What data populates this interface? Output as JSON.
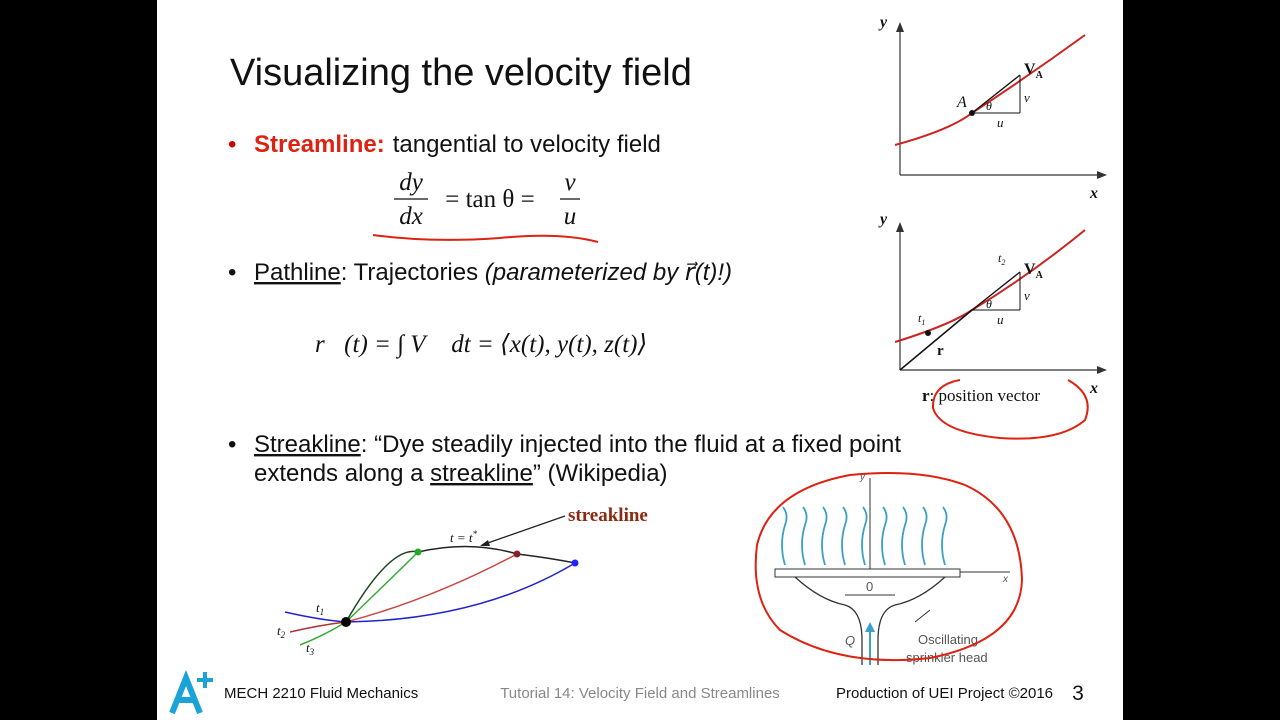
{
  "slide": {
    "title": "Visualizing the velocity field",
    "bullets": [
      {
        "term": "Streamline:",
        "text": "tangential to velocity field",
        "equation": {
          "num1": "dy",
          "den1": "dx",
          "middle": "= tan θ =",
          "num2": "v",
          "den2": "u"
        }
      },
      {
        "term": "Pathline",
        "text": ": Trajectories ",
        "note": "(parameterized by r⃗(t)!)",
        "equation": "r⃗(t) = ∫ V⃗ dt = ⟨x(t), y(t), z(t)⟩"
      },
      {
        "term": "Streakline",
        "line1": ": “Dye steadily injected into the fluid at a fixed point",
        "line2_start": "extends along a ",
        "line2_link": "streakline",
        "line2_end": "” (Wikipedia)"
      }
    ],
    "figure_streamline": {
      "y": "y",
      "x": "x",
      "point": "A",
      "angle": "θ",
      "vector": "V",
      "vector_sub": "A",
      "v": "v",
      "u": "u"
    },
    "figure_pathline": {
      "y": "y",
      "x": "x",
      "t2": "t",
      "t2_sub": "2",
      "t1": "t",
      "t1_sub": "1",
      "vector": "V",
      "vector_sub": "A",
      "angle": "θ",
      "v": "v",
      "u": "u",
      "r": "r",
      "caption_r": "r",
      "caption": ": position vector"
    },
    "figure_streakline": {
      "label": "streakline",
      "time": "t = t",
      "time_sup": "*",
      "t1": "t",
      "t1_sub": "1",
      "t2": "t",
      "t2_sub": "2",
      "t3": "t",
      "t3_sub": "3"
    },
    "figure_sprinkler": {
      "y": "y",
      "x": "x",
      "origin": "0",
      "flow": "Q",
      "caption1": "Oscillating",
      "caption2": "sprinkler head"
    },
    "footer": {
      "course": "MECH 2210 Fluid Mechanics",
      "tutorial": "Tutorial 14: Velocity Field and Streamlines",
      "credit": "Production of UEI Project ©2016",
      "page": "3"
    }
  }
}
